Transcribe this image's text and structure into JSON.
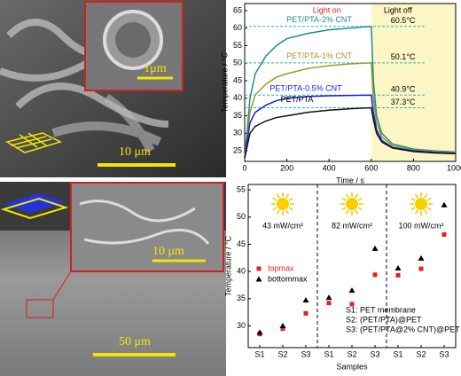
{
  "images": [
    {
      "scale_bars": [
        "1μm",
        "10 μm"
      ]
    },
    {
      "scale_bars": [
        "10 μm",
        "50 μm"
      ]
    }
  ],
  "chart_data": [
    {
      "type": "line",
      "x": [
        0,
        25,
        50,
        100,
        150,
        200,
        300,
        400,
        500,
        600,
        610,
        625,
        650,
        700,
        800,
        900,
        1000
      ],
      "xlim": [
        0,
        1000
      ],
      "xticks": [
        0,
        200,
        400,
        600,
        800,
        1000
      ],
      "ylim": [
        22,
        67
      ],
      "yticks": [
        25,
        30,
        35,
        40,
        45,
        50,
        55,
        60,
        65
      ],
      "x_label": "Time / s",
      "y_label": "Temperature / °C",
      "annotations": [
        {
          "text": "Light on",
          "color": "#e02020"
        },
        {
          "text": "Light off",
          "color": "#000000"
        }
      ],
      "shade": {
        "xlim": [
          600,
          1000
        ],
        "color": "#fcf6c4"
      },
      "series": [
        {
          "name": "PET/PTA-2% CNT",
          "color": "#1f8c8c",
          "label": "60.5°C",
          "label_value": 60.5,
          "values": [
            23,
            40,
            47,
            52,
            55,
            57,
            58.5,
            59.5,
            60,
            60.5,
            45,
            35,
            30,
            27,
            25.5,
            25,
            24.7
          ]
        },
        {
          "name": "PET/PTA-1% CNT",
          "color": "#999926",
          "label": "50.1°C",
          "label_value": 50.1,
          "values": [
            23,
            36,
            41,
            44,
            46,
            47,
            48.5,
            49.3,
            49.8,
            50.1,
            40,
            33,
            29,
            26.5,
            25.2,
            24.8,
            24.5
          ]
        },
        {
          "name": "PET/PTA-0.5% CNT",
          "color": "#1a1aee",
          "label": "40.9°C",
          "label_value": 40.9,
          "values": [
            23,
            33,
            36,
            38,
            39.3,
            40,
            40.5,
            40.7,
            40.8,
            40.9,
            36,
            31,
            28,
            26,
            25,
            24.6,
            24.3
          ]
        },
        {
          "name": "PET/PTA",
          "color": "#111111",
          "label": "37.3°C",
          "label_value": 37.3,
          "values": [
            23,
            30,
            32,
            33.5,
            34.5,
            35,
            36,
            36.6,
            37,
            37.3,
            34,
            30,
            27.5,
            25.8,
            24.8,
            24.4,
            24.2
          ]
        }
      ]
    },
    {
      "type": "scatter",
      "categories": [
        "S1",
        "S2",
        "S3",
        "S1",
        "S2",
        "S3",
        "S1",
        "S2",
        "S3"
      ],
      "ylim": [
        26,
        56
      ],
      "yticks": [
        30,
        35,
        40,
        45,
        50,
        55
      ],
      "x_label": "Samples",
      "y_label": "Temperature / °C",
      "groups": [
        "43 mW/cm²",
        "82 mW/cm²",
        "100 mW/cm²"
      ],
      "notes": [
        "S1: PET membrane",
        "S2: (PET/PTA)@PET",
        "S3: (PET/PTA@2% CNT)@PET"
      ],
      "series": [
        {
          "name": "topmax",
          "color": "#e82020",
          "marker": "square",
          "values": [
            28.5,
            29.5,
            32.3,
            34.2,
            34,
            39.4,
            39.3,
            40.5,
            46.8
          ]
        },
        {
          "name": "bottommax",
          "color": "#000000",
          "marker": "triangle",
          "values": [
            28.8,
            30,
            34.7,
            35.2,
            36.5,
            44.2,
            40.6,
            42.4,
            52.2
          ]
        }
      ]
    }
  ]
}
